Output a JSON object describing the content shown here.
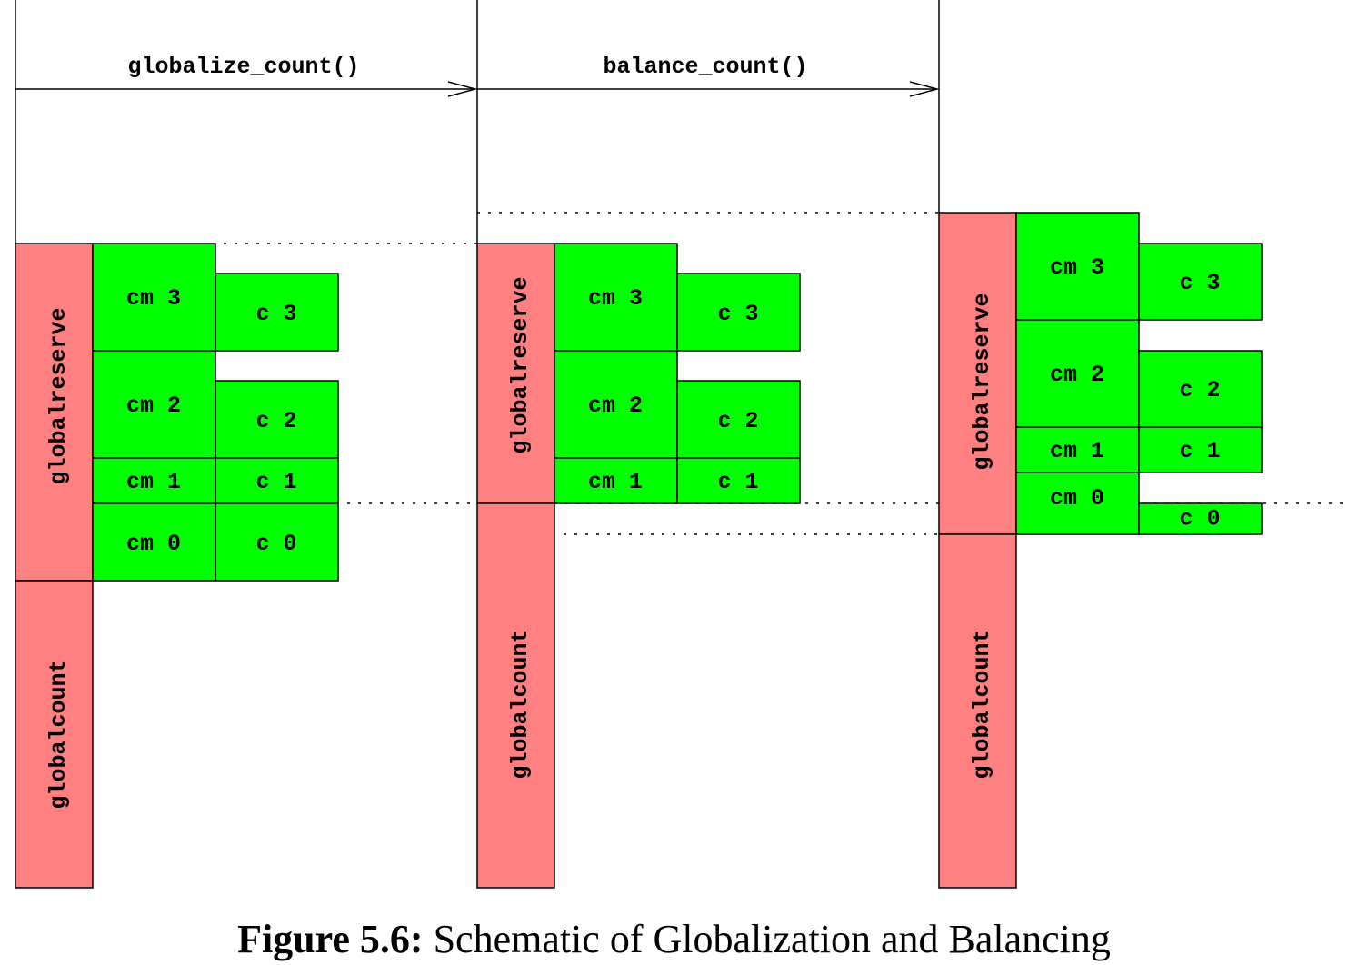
{
  "arrows": {
    "first_label": "globalize_count()",
    "second_label": "balance_count()"
  },
  "labels": {
    "globalreserve": "globalreserve",
    "globalcount": "globalcount",
    "cm3": "cm 3",
    "cm2": "cm 2",
    "cm1": "cm 1",
    "cm0": "cm 0",
    "c3": "c 3",
    "c2": "c 2",
    "c1": "c 1",
    "c0": "c 0"
  },
  "caption": {
    "label": "Figure 5.6:",
    "text": "Schematic of Globalization and Balancing"
  },
  "colors": {
    "reserve": "#ff8080",
    "counter": "#00ff00"
  }
}
